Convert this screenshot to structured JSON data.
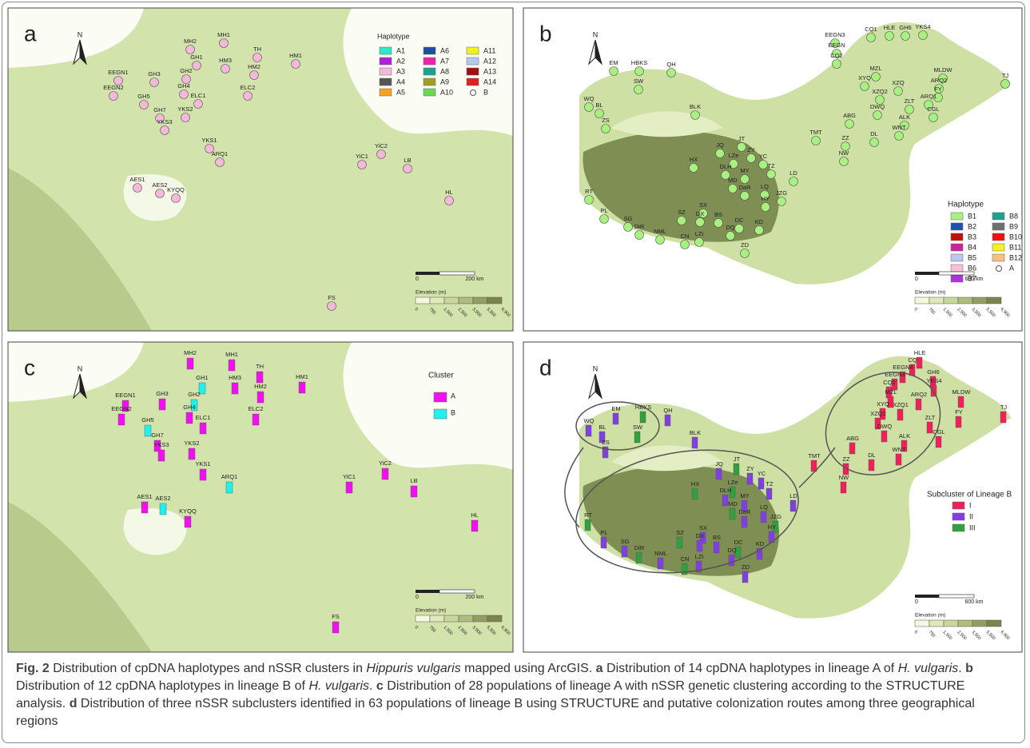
{
  "panels": [
    {
      "letter": "a",
      "north": "N",
      "legend_title": "Haplotype",
      "legend_items": [
        {
          "name": "A1",
          "color": "#2ee8c8"
        },
        {
          "name": "A2",
          "color": "#b020d8"
        },
        {
          "name": "A3",
          "color": "#f4b8d8"
        },
        {
          "name": "A4",
          "color": "#555555"
        },
        {
          "name": "A5",
          "color": "#f5a020"
        },
        {
          "name": "A6",
          "color": "#1f4fa0"
        },
        {
          "name": "A7",
          "color": "#f020a8"
        },
        {
          "name": "A8",
          "color": "#1fa090"
        },
        {
          "name": "A9",
          "color": "#a0a020"
        },
        {
          "name": "A10",
          "color": "#6ad850"
        },
        {
          "name": "A11",
          "color": "#f0f020"
        },
        {
          "name": "A12",
          "color": "#b8c8f0"
        },
        {
          "name": "A13",
          "color": "#a01010"
        },
        {
          "name": "A14",
          "color": "#e02020"
        },
        {
          "name": "B",
          "color": "#ffffff"
        }
      ],
      "scale_labels": [
        "0",
        "200 km"
      ],
      "elevation_title": "Elevation (m)",
      "elevation_ticks": [
        "0",
        "750",
        "1,500",
        "2,500",
        "3,500",
        "5,500",
        "6,900"
      ],
      "sites": [
        "MH2",
        "MH1",
        "TH",
        "HM1",
        "HM3",
        "GH1",
        "HM2",
        "EEGN1",
        "GH3",
        "GH2",
        "EEGN2",
        "GH4",
        "ELC2",
        "GH5",
        "ELC1",
        "GH7",
        "YKS2",
        "YKS3",
        "YKS1",
        "ARQ1",
        "YiC2",
        "YiC1",
        "LB",
        "AES1",
        "AES2",
        "KYQQ",
        "HL",
        "FS"
      ]
    },
    {
      "letter": "b",
      "north": "N",
      "legend_title": "Haplotype",
      "legend_items": [
        {
          "name": "B1",
          "color": "#a8f080"
        },
        {
          "name": "B2",
          "color": "#2050b0"
        },
        {
          "name": "B3",
          "color": "#c01010"
        },
        {
          "name": "B4",
          "color": "#d020a0"
        },
        {
          "name": "B5",
          "color": "#b8c8f0"
        },
        {
          "name": "B6",
          "color": "#f8c0d8"
        },
        {
          "name": "B7",
          "color": "#b030e0"
        },
        {
          "name": "B8",
          "color": "#20a090"
        },
        {
          "name": "B9",
          "color": "#707070"
        },
        {
          "name": "B10",
          "color": "#f01010"
        },
        {
          "name": "B11",
          "color": "#f8f020"
        },
        {
          "name": "B12",
          "color": "#f8c080"
        },
        {
          "name": "A",
          "color": "#ffffff"
        }
      ],
      "scale_labels": [
        "0",
        "600 km"
      ],
      "elevation_title": "Elevation (m)",
      "elevation_ticks": [
        "0",
        "750",
        "1,500",
        "2,500",
        "3,500",
        "5,500",
        "6,900"
      ],
      "sites": [
        "EEGN3",
        "CQ1",
        "HLE",
        "GH6",
        "YKS4",
        "EEGN",
        "CQ2",
        "MZL",
        "MLDW",
        "XYQ",
        "XZQ",
        "ARQ2",
        "FY",
        "TJ",
        "XZQ2",
        "ZLT",
        "ARQ1",
        "DWQ",
        "CGL",
        "ABG",
        "ALK",
        "WNT",
        "DL",
        "TMT",
        "ZZ",
        "NW",
        "EM",
        "HBKS",
        "QH",
        "WQ",
        "BL",
        "SW",
        "ZS",
        "BLK",
        "JT",
        "JQ",
        "LZe",
        "ZY",
        "YC",
        "TZ",
        "HX",
        "DLH",
        "MY",
        "LD",
        "MD",
        "DaR",
        "LQ",
        "JZG",
        "HY",
        "RT",
        "PL",
        "SX",
        "SZ",
        "DX",
        "SG",
        "DiR",
        "NML",
        "CN",
        "LZi",
        "BS",
        "DC",
        "DQ",
        "KD",
        "ZD"
      ]
    },
    {
      "letter": "c",
      "north": "N",
      "legend_title": "Cluster",
      "legend_items": [
        {
          "name": "A",
          "color": "#f010f0"
        },
        {
          "name": "B",
          "color": "#20f0f0"
        }
      ],
      "scale_labels": [
        "0",
        "200 km"
      ],
      "elevation_title": "Elevation (m)",
      "elevation_ticks": [
        "0",
        "750",
        "1,500",
        "2,500",
        "3,500",
        "5,500",
        "6,900"
      ],
      "sites": [
        "MH2",
        "MH1",
        "TH",
        "HM3",
        "GH1",
        "HM1",
        "HM2",
        "EEGN1",
        "GH3",
        "GH2",
        "EEGN2",
        "GH4",
        "ELC1",
        "ELC2",
        "GH5",
        "GH7",
        "YKS3",
        "YKS2",
        "YKS1",
        "ARQ1",
        "YiC2",
        "YiC1",
        "LB",
        "AES1",
        "AES2",
        "KYQQ",
        "HL",
        "FS"
      ]
    },
    {
      "letter": "d",
      "north": "N",
      "legend_title": "Subcluster of Lineage B",
      "legend_items": [
        {
          "name": "I",
          "color": "#f0205a"
        },
        {
          "name": "II",
          "color": "#8040e0"
        },
        {
          "name": "III",
          "color": "#30a040"
        }
      ],
      "scale_labels": [
        "0",
        "600 km"
      ],
      "elevation_title": "Elevation (m)",
      "elevation_ticks": [
        "0",
        "750",
        "1,500",
        "2,500",
        "3,500",
        "5,500",
        "6,900"
      ],
      "sites": [
        "HLE",
        "CQ",
        "EEGN4",
        "EEGN3",
        "GH6",
        "CQ2",
        "YKS4",
        "MZL",
        "ARQ2",
        "MLDW",
        "XYQ",
        "XZQ1",
        "XZQ2",
        "ZLT",
        "FY",
        "TJ",
        "DWQ",
        "CGL",
        "ABG",
        "ALK",
        "DL",
        "WNT",
        "TMT",
        "ZZ",
        "NW",
        "WQ",
        "EM",
        "HBKS",
        "QH",
        "BL",
        "SW",
        "ZS",
        "BLK",
        "JT",
        "JQ",
        "ZY",
        "LZe",
        "YC",
        "TZ",
        "HX",
        "DLH",
        "MY",
        "MD",
        "DaR",
        "LQ",
        "JZG",
        "LD",
        "HY",
        "RT",
        "PL",
        "SX",
        "SZ",
        "DX",
        "SG",
        "DiR",
        "NML",
        "BS",
        "DC",
        "DQ",
        "KD",
        "CN",
        "LZi",
        "ZD"
      ]
    }
  ],
  "caption": {
    "segments": [
      "Fig. 2",
      " Distribution of cpDNA haplotypes and nSSR clusters in ",
      "Hippuris vulgaris",
      " mapped using ArcGIS. ",
      "a",
      " Distribution of 14 cpDNA haplotypes in lineage A of ",
      "H. vulgaris",
      ". ",
      "b",
      " Distribution of 12 cpDNA haplotypes in lineage B of ",
      "H. vulgaris",
      ". ",
      "c",
      " Distribution of 28 populations of lineage A with nSSR genetic clustering according to the STRUCTURE analysis. ",
      "d",
      " Distribution of three nSSR subclusters identified in 63 populations of lineage B using STRUCTURE and putative colonization routes among three geographical regions"
    ]
  }
}
